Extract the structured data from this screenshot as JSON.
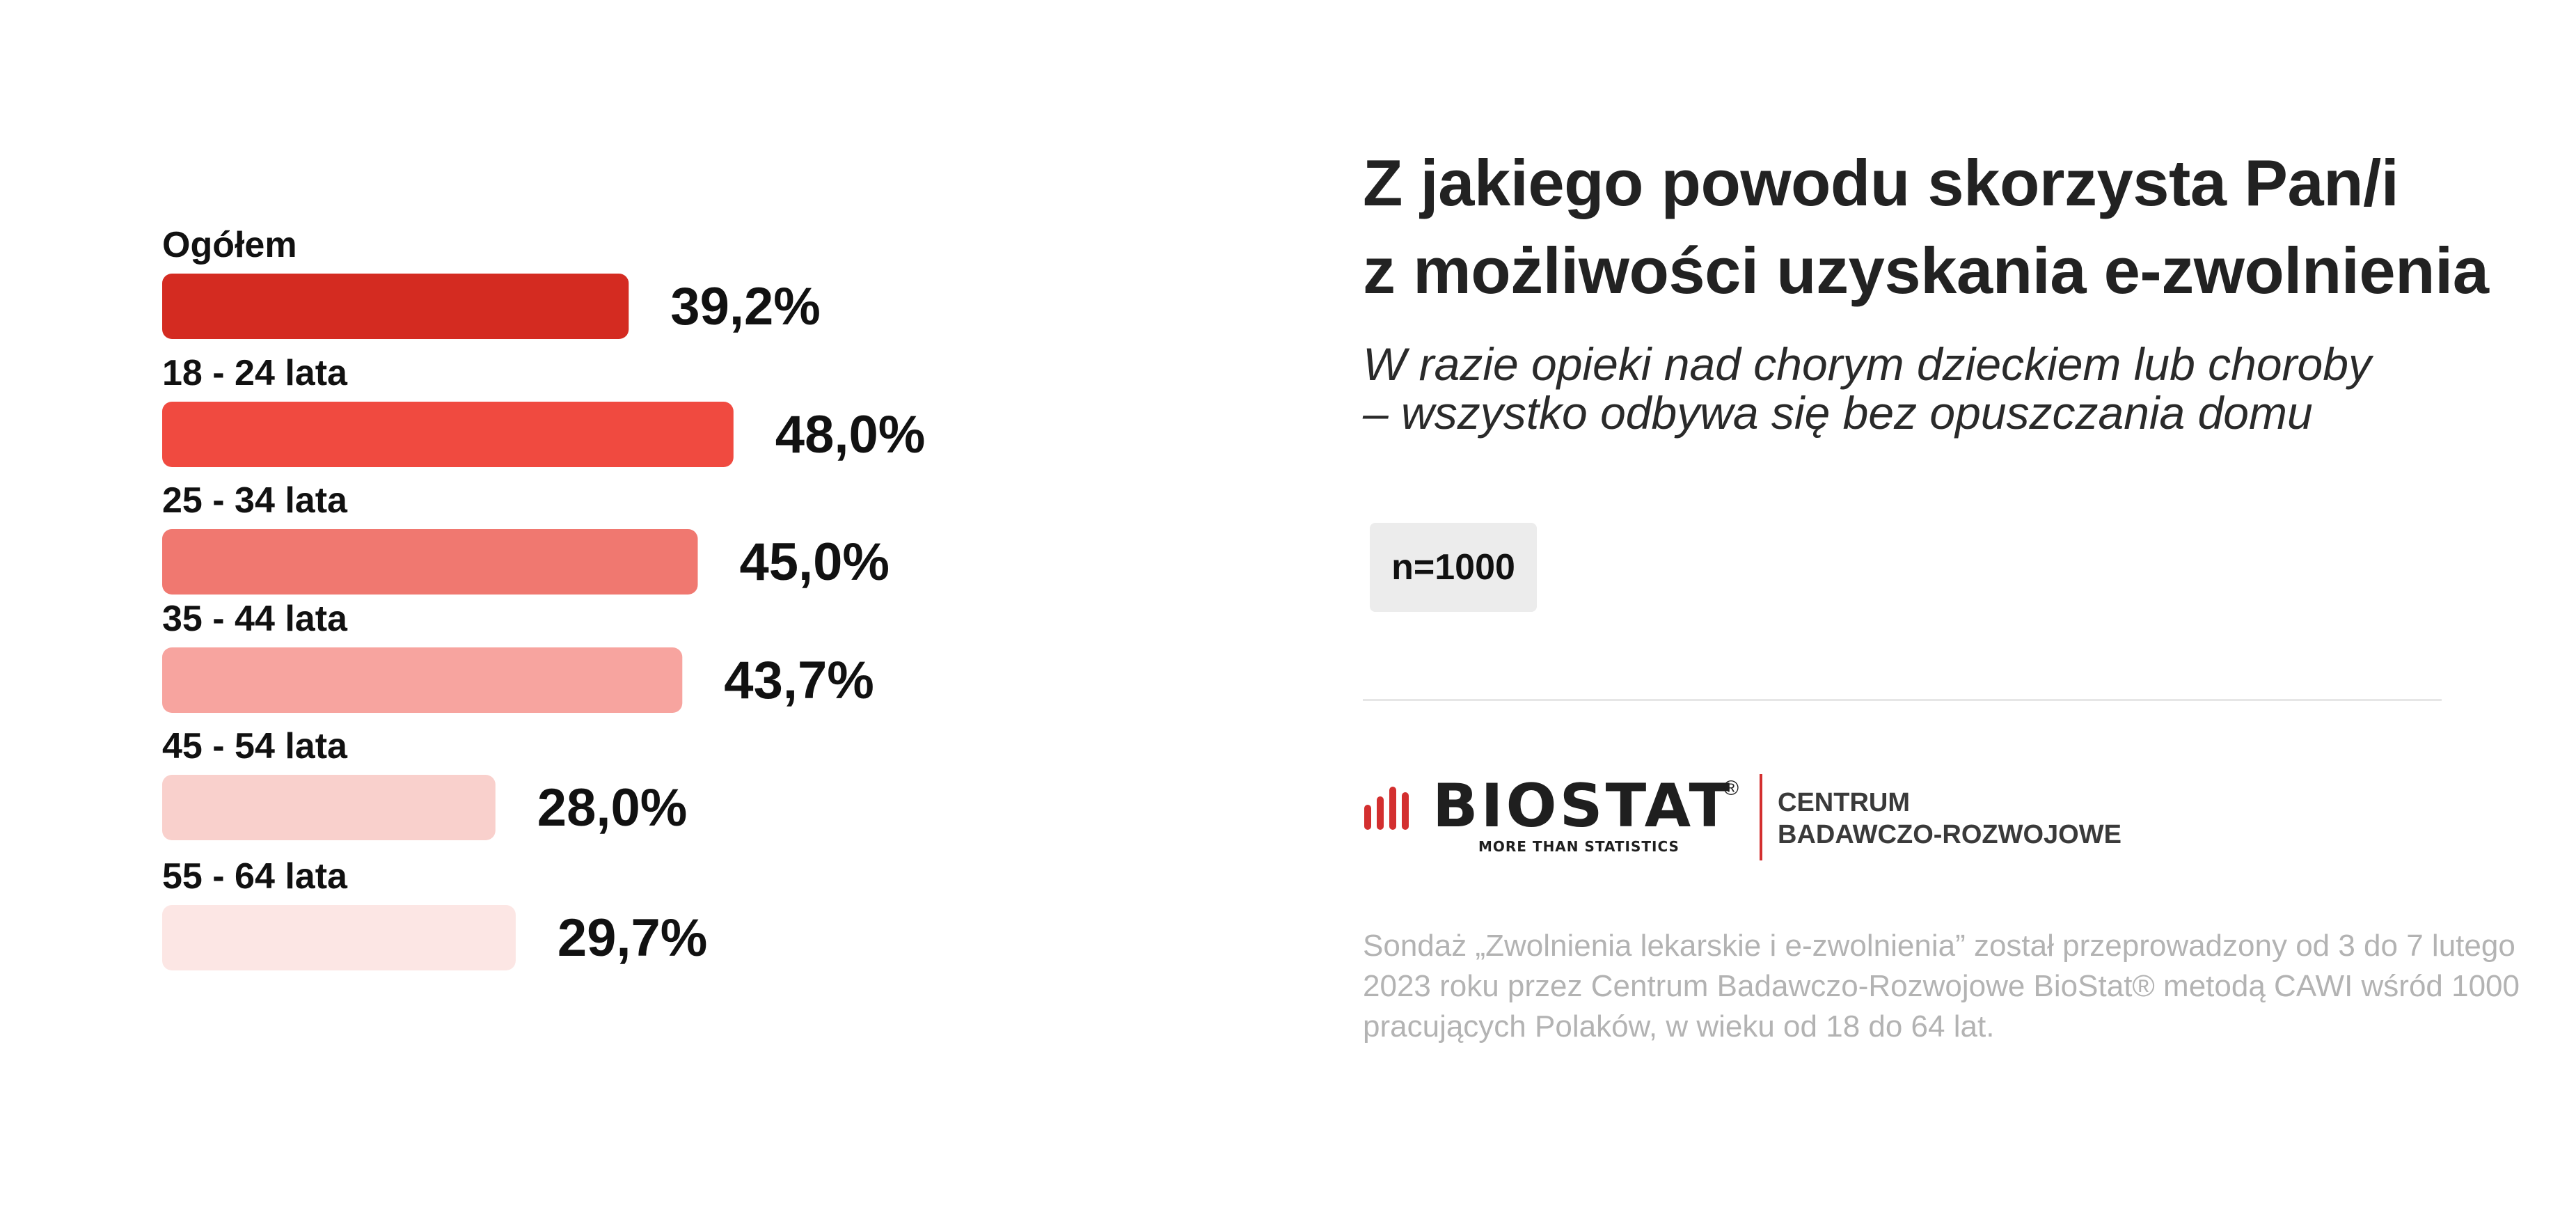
{
  "chart_data": {
    "type": "bar",
    "orientation": "horizontal",
    "categories": [
      "Ogółem",
      "18 - 24 lata",
      "25 - 34 lata",
      "35 - 44 lata",
      "45 - 54 lata",
      "55 - 64 lata"
    ],
    "values": [
      39.2,
      48.0,
      45.0,
      43.7,
      28.0,
      29.7
    ],
    "value_labels": [
      "39,2%",
      "48,0%",
      "45,0%",
      "43,7%",
      "28,0%",
      "29,7%"
    ],
    "bar_colors": [
      "#d42b21",
      "#f04a40",
      "#f07870",
      "#f7a49f",
      "#f9d0cc",
      "#fce6e4"
    ],
    "grid": false,
    "legend": "none"
  },
  "info": {
    "title_lines": [
      "Z jakiego powodu skorzysta Pan/i",
      "z możliwości uzyskania e-zwolnienia"
    ],
    "subtitle_lines": [
      "W razie opieki nad chorym dzieckiem lub choroby",
      "– wszystko odbywa się bez opuszczania domu"
    ],
    "sample_size": "n=1000"
  },
  "logo": {
    "wordmark": "BIOSTAT",
    "registered": "®",
    "tagline": "MORE THAN STATISTICS",
    "centrum_line1": "CENTRUM",
    "centrum_line2": "BADAWCZO-ROZWOJOWE",
    "accent_color": "#d32f2f"
  },
  "footnote_lines": [
    "Sondaż „Zwolnienia lekarskie i e-zwolnienia” został przeprowadzony od 3 do 7 lutego",
    "2023 roku przez Centrum Badawczo-Rozwojowe BioStat® metodą CAWI wśród 1000",
    "pracujących Polaków, w wieku od 18 do 64 lat."
  ]
}
